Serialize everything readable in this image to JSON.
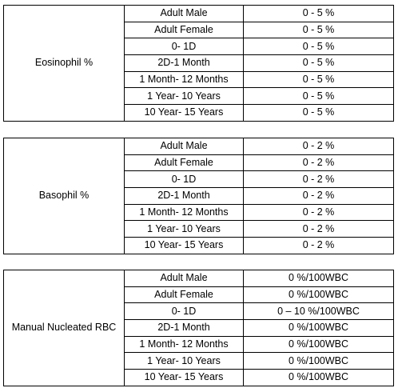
{
  "tables": [
    {
      "label": "Eosinophil %",
      "rows": [
        [
          "Adult Male",
          "0 - 5 %"
        ],
        [
          "Adult Female",
          "0 - 5 %"
        ],
        [
          "0- 1D",
          "0 - 5 %"
        ],
        [
          "2D-1 Month",
          "0 - 5 %"
        ],
        [
          "1 Month- 12 Months",
          "0 - 5 %"
        ],
        [
          "1 Year- 10 Years",
          "0 - 5 %"
        ],
        [
          "10 Year- 15 Years",
          "0 - 5 %"
        ]
      ]
    },
    {
      "label": "Basophil %",
      "rows": [
        [
          "Adult Male",
          "0 - 2 %"
        ],
        [
          "Adult Female",
          "0 - 2 %"
        ],
        [
          "0- 1D",
          "0 - 2 %"
        ],
        [
          "2D-1 Month",
          "0 - 2 %"
        ],
        [
          "1 Month- 12 Months",
          "0 - 2 %"
        ],
        [
          "1 Year- 10 Years",
          "0 - 2 %"
        ],
        [
          "10 Year- 15 Years",
          "0 - 2 %"
        ]
      ]
    },
    {
      "label": "Manual Nucleated RBC",
      "rows": [
        [
          "Adult Male",
          "0 %/100WBC"
        ],
        [
          "Adult Female",
          "0 %/100WBC"
        ],
        [
          "0- 1D",
          "0 – 10 %/100WBC"
        ],
        [
          "2D-1 Month",
          "0 %/100WBC"
        ],
        [
          "1 Month- 12 Months",
          "0 %/100WBC"
        ],
        [
          "1 Year- 10 Years",
          "0 %/100WBC"
        ],
        [
          "10 Year- 15 Years",
          "0 %/100WBC"
        ]
      ]
    }
  ]
}
